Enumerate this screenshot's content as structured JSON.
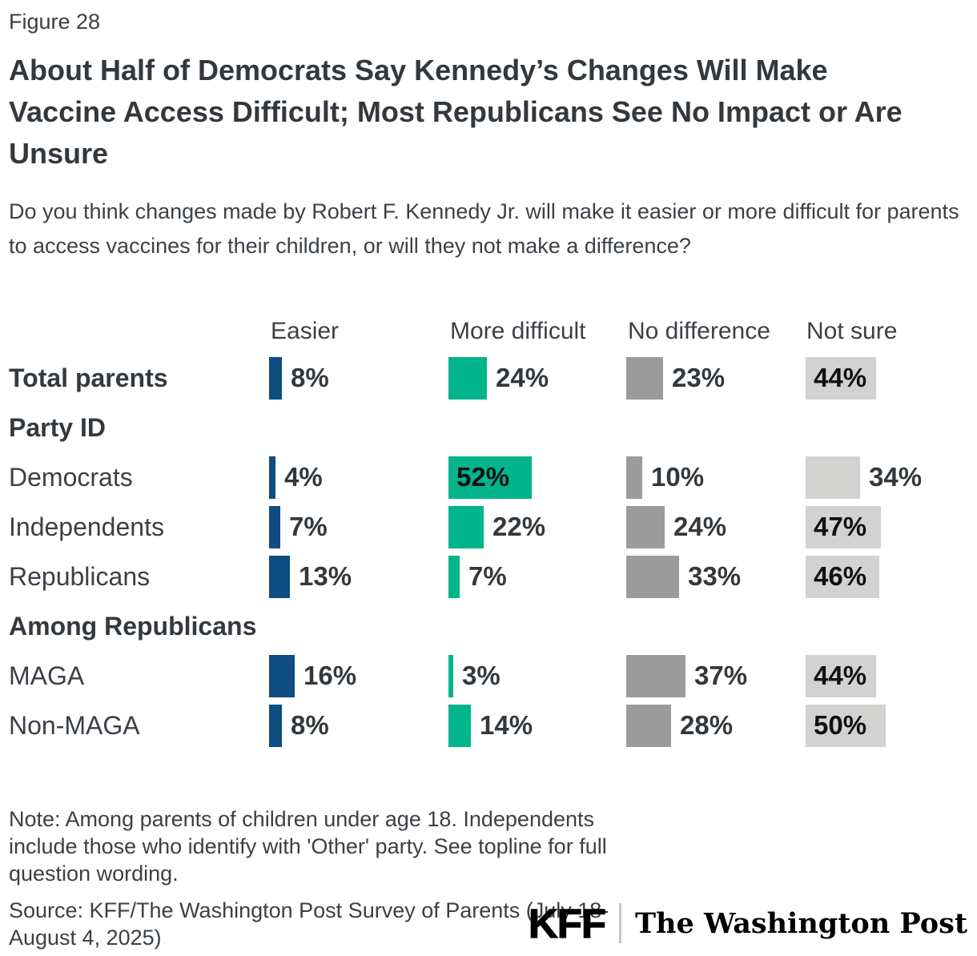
{
  "figure_label": "Figure 28",
  "title": "About Half of Democrats Say Kennedy’s Changes Will Make Vaccine Access Difficult; Most Republicans See No Impact or Are Unsure",
  "question": "Do you think changes made by Robert F. Kennedy Jr. will make it easier or more difficult for parents to access vaccines for their children, or will they not make a difference?",
  "chart_data": {
    "type": "bar",
    "orientation": "horizontal",
    "unit": "%",
    "legend_position": "column headers above each bar group",
    "grid": false,
    "xlim_per_column_pct": [
      0,
      55
    ],
    "columns": [
      {
        "label": "Easier",
        "color": "#0e4c81"
      },
      {
        "label": "More difficult",
        "color": "#01b48b"
      },
      {
        "label": "No difference",
        "color": "#9b9b9b"
      },
      {
        "label": "Not sure",
        "color": "#d2d2d0"
      }
    ],
    "rows": [
      {
        "type": "data",
        "label": "Total parents",
        "bold": true,
        "values": [
          8,
          24,
          23,
          44
        ]
      },
      {
        "type": "section",
        "label": "Party ID"
      },
      {
        "type": "data",
        "label": "Democrats",
        "bold": false,
        "values": [
          4,
          52,
          10,
          34
        ]
      },
      {
        "type": "data",
        "label": "Independents",
        "bold": false,
        "values": [
          7,
          22,
          24,
          47
        ]
      },
      {
        "type": "data",
        "label": "Republicans",
        "bold": false,
        "values": [
          13,
          7,
          33,
          46
        ]
      },
      {
        "type": "section",
        "label": "Among Republicans"
      },
      {
        "type": "data",
        "label": "MAGA",
        "bold": false,
        "values": [
          16,
          3,
          37,
          44
        ]
      },
      {
        "type": "data",
        "label": "Non-MAGA",
        "bold": false,
        "values": [
          8,
          14,
          28,
          50
        ]
      }
    ]
  },
  "note": "Note: Among parents of children under age 18. Independents include those who identify with 'Other' party. See topline for full question wording.",
  "source": "Source: KFF/The Washington Post Survey of Parents (July 18-August 4, 2025)",
  "footer_logos": {
    "kff": "KFF",
    "wapo": "The Washington Post"
  }
}
